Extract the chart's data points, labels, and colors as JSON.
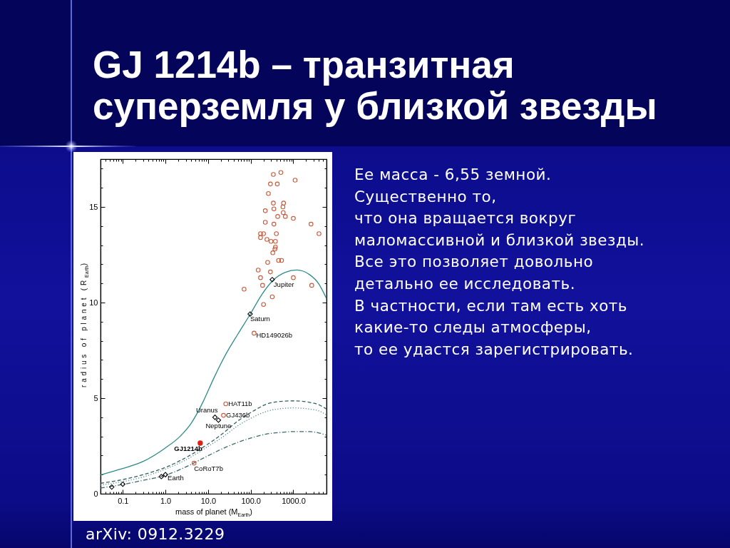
{
  "chart_data": {
    "type": "scatter",
    "title": "GJ 1214b – транзитная суперземля у близкой звезды",
    "xlabel": "mass of planet (M$_{Earth}$)",
    "ylabel": "radius of planet (R$_{Earth}$)",
    "log": "x",
    "xlim": [
      0.03,
      6000
    ],
    "ylim": [
      0,
      17.5
    ],
    "xticks": [
      {
        "value": 0.04,
        "label": null
      },
      {
        "value": 0.05,
        "label": null
      },
      {
        "value": 0.06,
        "label": null
      },
      {
        "value": 0.07,
        "label": null
      },
      {
        "value": 0.08,
        "label": null
      },
      {
        "value": 0.09,
        "label": null
      },
      0.1,
      {
        "value": 0.2,
        "label": null
      },
      {
        "value": 0.3,
        "label": null
      },
      {
        "value": 0.4,
        "label": null
      },
      {
        "value": 0.5,
        "label": null
      },
      {
        "value": 0.6,
        "label": null
      },
      {
        "value": 0.7,
        "label": null
      },
      {
        "value": 0.8,
        "label": null
      },
      {
        "value": 0.9,
        "label": null
      },
      {
        "value": 1,
        "label": "1.0"
      },
      {
        "value": 2,
        "label": null
      },
      {
        "value": 3,
        "label": null
      },
      {
        "value": 4,
        "label": null
      },
      {
        "value": 5,
        "label": null
      },
      {
        "value": 6,
        "label": null
      },
      {
        "value": 7,
        "label": null
      },
      {
        "value": 8,
        "label": null
      },
      {
        "value": 9,
        "label": null
      },
      {
        "value": 10,
        "label": "10.0"
      },
      {
        "value": 20,
        "label": null
      },
      {
        "value": 30,
        "label": null
      },
      {
        "value": 40,
        "label": null
      },
      {
        "value": 50,
        "label": null
      },
      {
        "value": 60,
        "label": null
      },
      {
        "value": 70,
        "label": null
      },
      {
        "value": 80,
        "label": null
      },
      {
        "value": 90,
        "label": null
      },
      {
        "value": 100,
        "label": "100.0"
      },
      {
        "value": 200,
        "label": null
      },
      {
        "value": 300,
        "label": null
      },
      {
        "value": 400,
        "label": null
      },
      {
        "value": 500,
        "label": null
      },
      {
        "value": 600,
        "label": null
      },
      {
        "value": 700,
        "label": null
      },
      {
        "value": 800,
        "label": null
      },
      {
        "value": 900,
        "label": null
      },
      {
        "value": 1000,
        "label": "1000.0"
      },
      {
        "value": 2000,
        "label": null
      },
      {
        "value": 3000,
        "label": null
      },
      {
        "value": 4000,
        "label": null
      },
      {
        "value": 5000,
        "label": null
      }
    ],
    "yticks": [
      0,
      {
        "value": 1,
        "label": null
      },
      {
        "value": 2,
        "label": null
      },
      {
        "value": 3,
        "label": null
      },
      {
        "value": 4,
        "label": null
      },
      5,
      {
        "value": 6,
        "label": null
      },
      {
        "value": 7,
        "label": null
      },
      {
        "value": 8,
        "label": null
      },
      {
        "value": 9,
        "label": null
      },
      10,
      {
        "value": 11,
        "label": null
      },
      {
        "value": 12,
        "label": null
      },
      {
        "value": 13,
        "label": null
      },
      {
        "value": 14,
        "label": null
      },
      15,
      {
        "value": 16,
        "label": null
      },
      {
        "value": 17,
        "label": null
      }
    ],
    "series": [
      {
        "marker": "circle",
        "color": "#c75a3c",
        "x": [
          340,
          510,
          1100,
          290,
          420,
          260,
          340,
          590,
          570,
          350,
          220,
          580,
          430,
          650,
          1000,
          220,
          350,
          2600,
          4000,
          170,
          200,
          170,
          400,
          240,
          300,
          380,
          380,
          370,
          330,
          450,
          530,
          250,
          150,
          290,
          170,
          1000,
          70,
          190,
          2700,
          320,
          200,
          120,
          26,
          23,
          4.7
        ],
        "values": [
          16.7,
          16.8,
          16.4,
          16.2,
          16.2,
          15.7,
          15.2,
          15.2,
          15.0,
          14.9,
          14.8,
          14.7,
          14.5,
          14.5,
          14.4,
          14.2,
          14.1,
          14.1,
          13.6,
          13.6,
          13.6,
          13.4,
          13.6,
          13.3,
          13.2,
          13.2,
          12.9,
          12.8,
          12.6,
          12.2,
          12.2,
          12.1,
          11.7,
          11.6,
          11.3,
          11.3,
          10.7,
          10.9,
          10.9,
          10.3,
          9.9,
          8.4,
          4.7,
          4.1,
          1.6
        ]
      },
      {
        "marker": "diamond",
        "color": "#000000",
        "x": [
          0.055,
          0.1,
          0.8,
          1,
          14.5,
          17.5,
          97,
          320
        ],
        "values": [
          0.35,
          0.5,
          0.9,
          1.0,
          4.0,
          3.85,
          9.4,
          11.2
        ]
      },
      {
        "marker": "circle",
        "color": "#e02010",
        "x": [
          6.55
        ],
        "values": [
          2.65
        ]
      },
      {
        "type": "line",
        "line_style": "solid",
        "color": "#2e8b8b",
        "x": [
          0.03,
          0.08,
          0.3,
          1,
          2.2,
          4,
          7.6,
          13.6,
          26,
          50,
          100,
          180,
          330,
          650,
          1200,
          2400,
          4000,
          6000
        ],
        "values": [
          0.98,
          1.26,
          1.69,
          2.4,
          3.0,
          3.68,
          4.8,
          6.04,
          7.29,
          8.35,
          9.43,
          10.4,
          11.15,
          11.58,
          11.7,
          11.46,
          10.96,
          10.21
        ]
      },
      {
        "type": "line",
        "line_style": "dashed",
        "color": "#355f5f",
        "x": [
          0.03,
          0.08,
          0.3,
          1,
          3.7,
          8,
          23,
          50,
          110,
          230,
          500,
          1000,
          2400,
          4000,
          6000
        ],
        "values": [
          0.55,
          0.7,
          1.0,
          1.38,
          2.0,
          2.46,
          3.18,
          3.81,
          4.3,
          4.68,
          4.83,
          4.86,
          4.78,
          4.65,
          4.43
        ]
      },
      {
        "type": "line",
        "line_style": "dotted",
        "color": "#5a8a8a",
        "x": [
          0.03,
          0.08,
          0.3,
          1,
          3.7,
          8,
          23,
          50,
          110,
          230,
          500,
          1000,
          2400,
          4000,
          6000
        ],
        "values": [
          0.45,
          0.6,
          0.88,
          1.29,
          1.88,
          2.34,
          3.0,
          3.56,
          3.99,
          4.3,
          4.45,
          4.49,
          4.43,
          4.33,
          4.12
        ]
      },
      {
        "type": "line",
        "line_style": "dashdot",
        "color": "#3a6a6a",
        "x": [
          0.03,
          0.08,
          0.3,
          1,
          3.7,
          8,
          23,
          50,
          110,
          230,
          500,
          1000,
          2400,
          4000,
          6000
        ],
        "values": [
          0.3,
          0.45,
          0.7,
          0.97,
          1.5,
          1.88,
          2.38,
          2.69,
          2.94,
          3.12,
          3.21,
          3.25,
          3.25,
          3.18,
          3.06
        ]
      }
    ],
    "annotations": [
      "Ее масса - 6,55 земной.\nСущественно то,\nчто она вращается вокруг\nмаломассивной и близкой звезды.\nВсе это позволяет довольно\nдетально ее исследовать.\nВ частности, если там есть хоть\nкакие-то следы атмосферы,\nто ее удастся зарегистрировать.",
      "arXiv: 0912.3229",
      {
        "text": "Jupiter",
        "x": 320,
        "y": 11.2
      },
      {
        "text": "Saturn",
        "x": 97,
        "y": 9.4
      },
      {
        "text": "HD149026b",
        "x": 120,
        "y": 8.4
      },
      {
        "text": "HAT11b",
        "x": 26,
        "y": 4.7
      },
      {
        "text": "GJ436b",
        "x": 23,
        "y": 4.1
      },
      {
        "text": "Uranus",
        "x": 14.5,
        "y": 4.0
      },
      {
        "text": "Neptune",
        "x": 17.5,
        "y": 3.85
      },
      {
        "text": "GJ1214b",
        "x": 6.55,
        "y": 2.65
      },
      {
        "text": "CoRoT7b",
        "x": 4.7,
        "y": 1.6
      },
      {
        "text": "Earth",
        "x": 1,
        "y": 1.0
      }
    ]
  }
}
